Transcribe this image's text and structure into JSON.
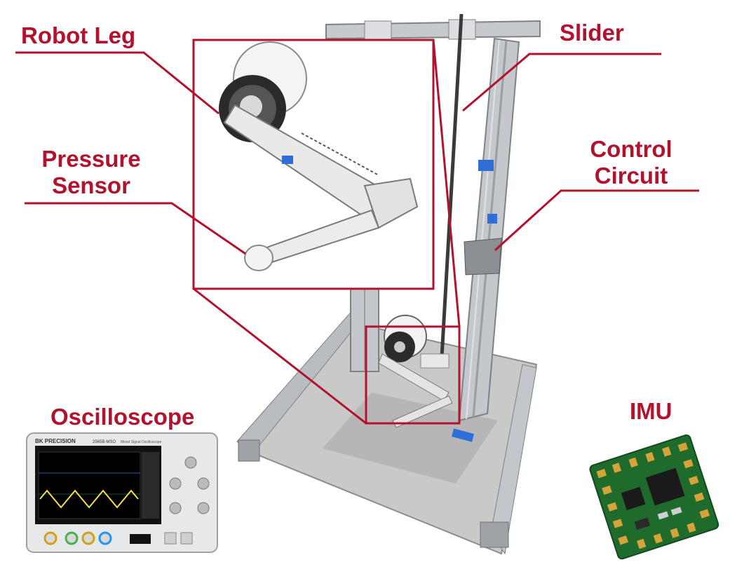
{
  "labels": {
    "robot_leg": "Robot Leg",
    "pressure_sensor_line1": "Pressure",
    "pressure_sensor_line2": "Sensor",
    "slider": "Slider",
    "control_circuit_line1": "Control",
    "control_circuit_line2": "Circuit",
    "oscilloscope": "Oscilloscope",
    "imu": "IMU"
  },
  "oscilloscope": {
    "brand": "BK PRECISION",
    "model": "2565B-MSO",
    "subtitle": "Mixed Signal Oscilloscope"
  },
  "colors": {
    "callout": "#b3122e",
    "frame": "#b9bcc0",
    "pcb": "#1f6b2c",
    "pad": "#d6a23a",
    "scope_trace": "#f2e34a"
  }
}
